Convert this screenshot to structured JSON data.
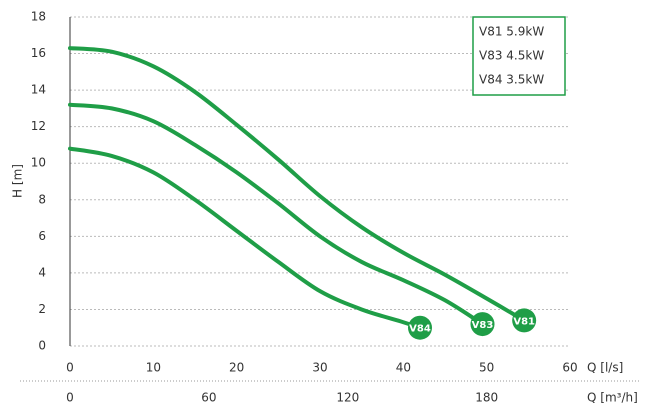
{
  "chart_data": {
    "type": "line",
    "ylabel": "H [m]",
    "xlabel": "Q [l/s]",
    "x2label": "Q [m³/h]",
    "xlim": [
      0,
      60
    ],
    "xticks": [
      0,
      10,
      20,
      30,
      40,
      50,
      60
    ],
    "x2lim": [
      0,
      216
    ],
    "x2ticks": [
      0,
      60,
      120,
      180
    ],
    "ylim": [
      0,
      18
    ],
    "yticks": [
      0,
      2,
      4,
      6,
      8,
      10,
      12,
      14,
      16,
      18
    ],
    "grid": true,
    "legend": "upper right",
    "series": [
      {
        "name": "V81 5.9kW",
        "label": "V81",
        "color": "#1f9e47",
        "x": [
          0,
          5,
          10,
          15,
          20,
          25,
          30,
          35,
          40,
          45,
          50,
          54.5
        ],
        "values": [
          16.3,
          16.1,
          15.3,
          13.9,
          12.1,
          10.2,
          8.2,
          6.5,
          5.1,
          3.9,
          2.6,
          1.4
        ]
      },
      {
        "name": "V83 4.5kW",
        "label": "V83",
        "color": "#1f9e47",
        "x": [
          0,
          5,
          10,
          15,
          20,
          25,
          30,
          35,
          40,
          45,
          49.5
        ],
        "values": [
          13.2,
          13.0,
          12.3,
          11.0,
          9.5,
          7.8,
          6.0,
          4.6,
          3.6,
          2.5,
          1.2
        ]
      },
      {
        "name": "V84 3.5kW",
        "label": "V84",
        "color": "#1f9e47",
        "x": [
          0,
          5,
          10,
          15,
          20,
          25,
          30,
          35,
          40,
          42
        ],
        "values": [
          10.8,
          10.4,
          9.5,
          8.0,
          6.3,
          4.6,
          3.0,
          2.0,
          1.3,
          1.0
        ]
      }
    ]
  }
}
